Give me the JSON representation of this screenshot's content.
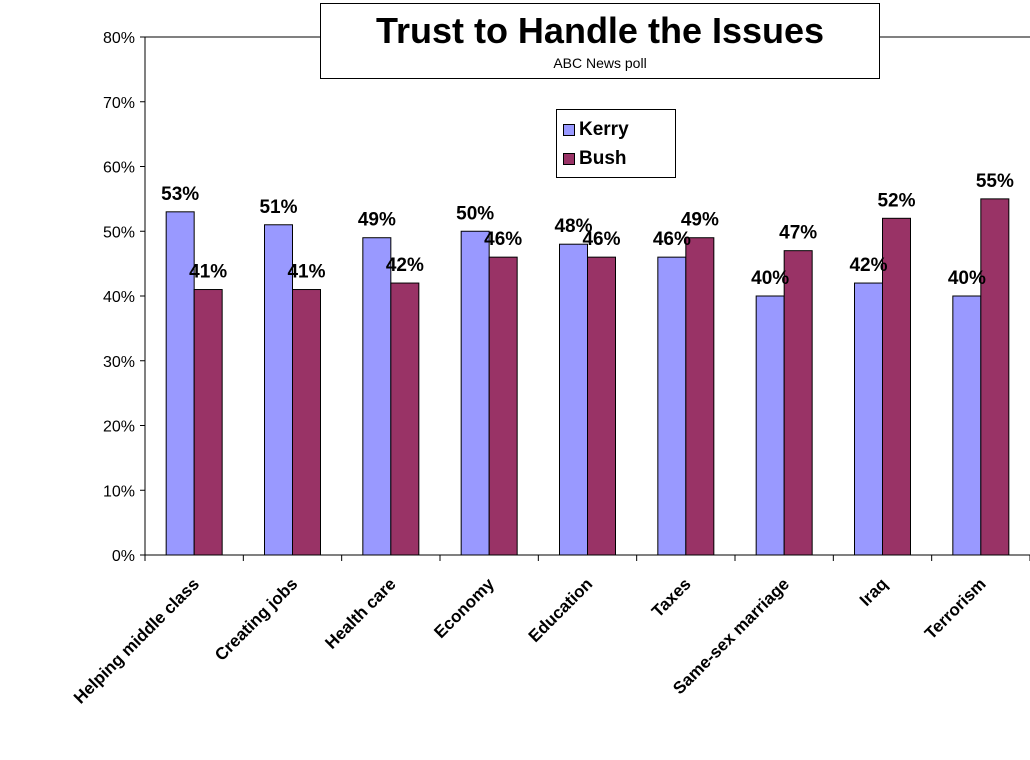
{
  "chart_data": {
    "type": "bar",
    "title": "Trust to Handle the Issues",
    "subtitle": "ABC News poll",
    "categories": [
      "Helping middle class",
      "Creating jobs",
      "Health care",
      "Economy",
      "Education",
      "Taxes",
      "Same-sex marriage",
      "Iraq",
      "Terrorism"
    ],
    "series": [
      {
        "name": "Kerry",
        "color": "#9999ff",
        "values": [
          53,
          51,
          49,
          50,
          48,
          46,
          40,
          42,
          40
        ]
      },
      {
        "name": "Bush",
        "color": "#993366",
        "values": [
          41,
          41,
          42,
          46,
          46,
          49,
          47,
          52,
          55
        ]
      }
    ],
    "ylim": [
      0,
      80
    ],
    "yticks": [
      "0%",
      "10%",
      "20%",
      "30%",
      "40%",
      "50%",
      "60%",
      "70%",
      "80%"
    ],
    "ytick_values": [
      0,
      10,
      20,
      30,
      40,
      50,
      60,
      70,
      80
    ],
    "value_suffix": "%",
    "grid": false,
    "legend_position": "top-center"
  }
}
